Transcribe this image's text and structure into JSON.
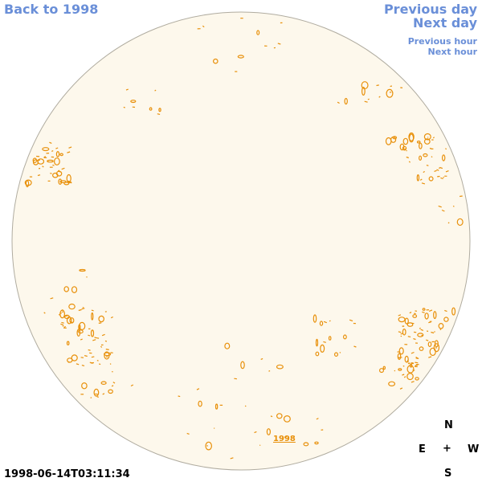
{
  "nav": {
    "back_label": "Back to 1998",
    "prev_day_label": "Previous day",
    "next_day_label": "Next day",
    "prev_hour_label": "Previous hour",
    "next_hour_label": "Next hour"
  },
  "map": {
    "year_label": "1998",
    "timestamp": "1998-06-14T03:11:34"
  },
  "compass": {
    "north": "N",
    "east": "E",
    "west": "W",
    "south": "S",
    "center": "+"
  },
  "colors": {
    "link": "#6a8fd8",
    "disk_fill": "#fdf8ec",
    "disk_stroke": "#b0aca0",
    "contour": "#e8900a"
  }
}
